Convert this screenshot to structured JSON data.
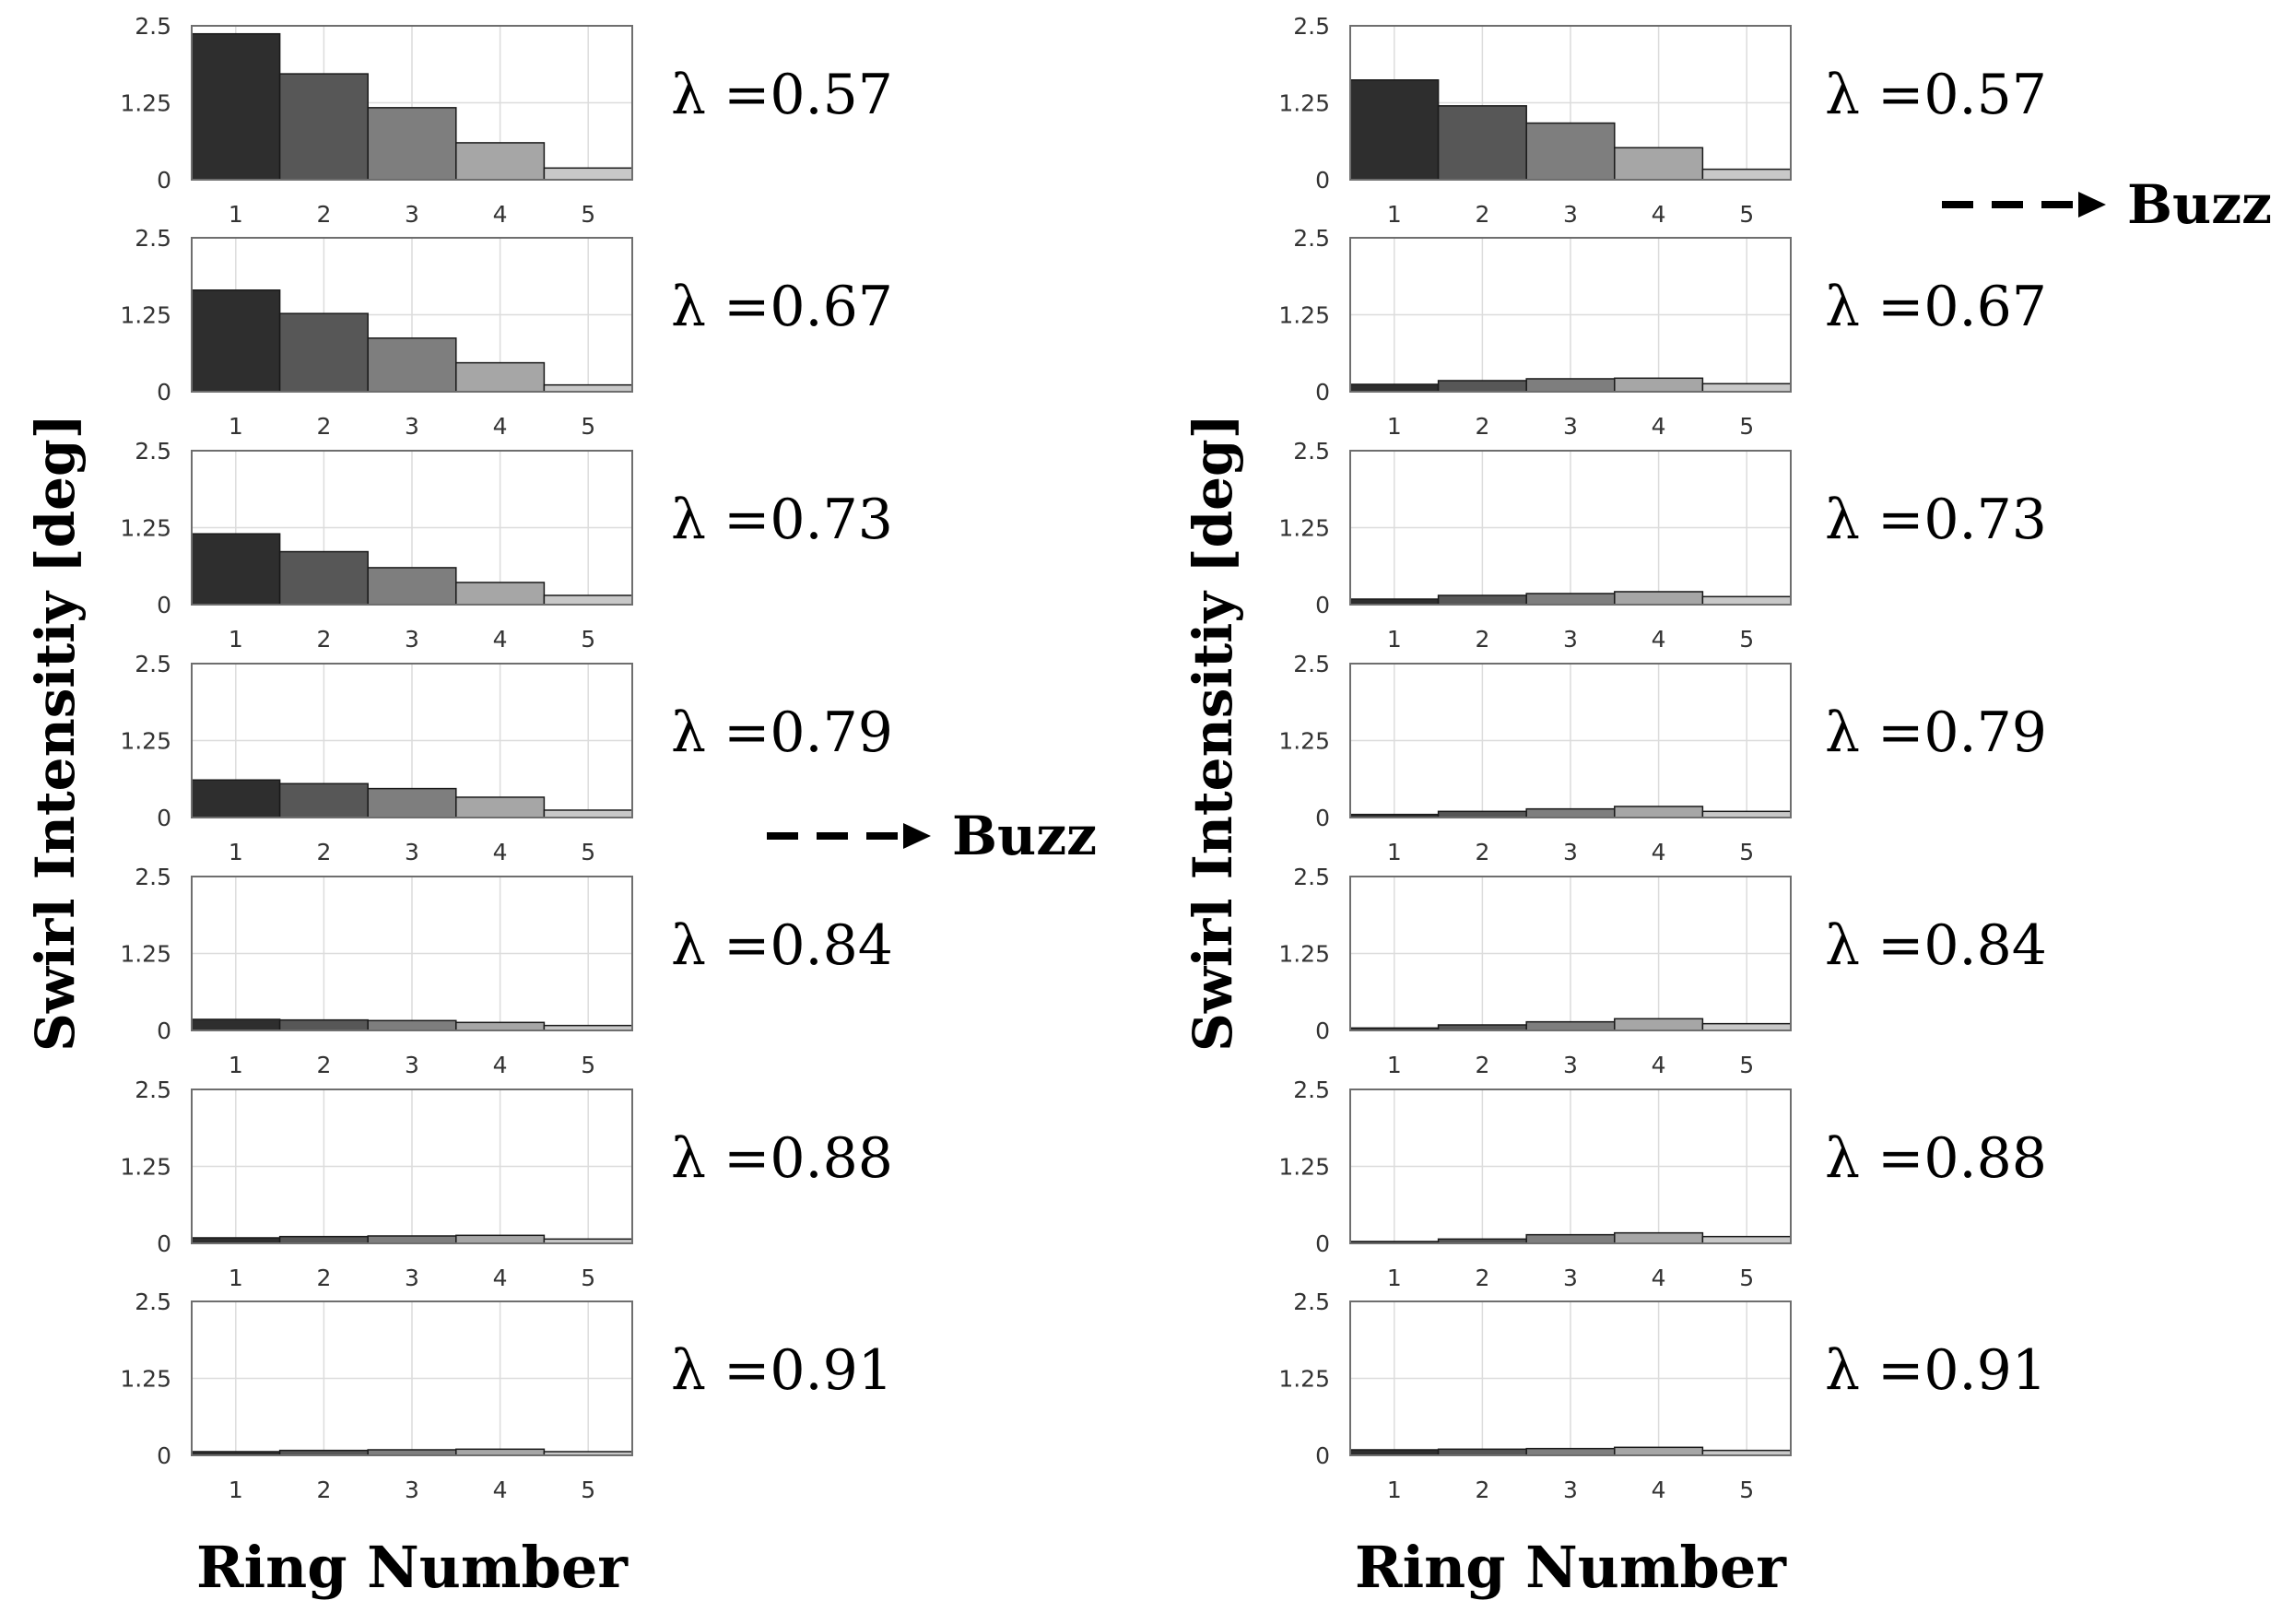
{
  "chart_data": [
    {
      "type": "bar",
      "panel": "left",
      "ylabel": "Swirl Intensitiy [deg]",
      "xlabel": "Ring Number",
      "categories": [
        "1",
        "2",
        "3",
        "4",
        "5"
      ],
      "yticks": [
        "0",
        "1.25",
        "2.5"
      ],
      "ylim": [
        0,
        2.5
      ],
      "bar_colors": [
        "#2e2e2e",
        "#575757",
        "#7e7e7e",
        "#a6a6a6",
        "#c8c8c8"
      ],
      "series": [
        {
          "name": "λ =0.57",
          "values": [
            2.37,
            1.72,
            1.17,
            0.6,
            0.19
          ]
        },
        {
          "name": "λ =0.67",
          "values": [
            1.65,
            1.27,
            0.87,
            0.47,
            0.11
          ]
        },
        {
          "name": "λ =0.73",
          "values": [
            1.15,
            0.86,
            0.6,
            0.36,
            0.15
          ]
        },
        {
          "name": "λ =0.79",
          "values": [
            0.61,
            0.55,
            0.47,
            0.33,
            0.12
          ]
        },
        {
          "name": "λ =0.84",
          "values": [
            0.18,
            0.17,
            0.16,
            0.13,
            0.08
          ]
        },
        {
          "name": "λ =0.88",
          "values": [
            0.09,
            0.11,
            0.12,
            0.13,
            0.07
          ]
        },
        {
          "name": "λ =0.91",
          "values": [
            0.06,
            0.08,
            0.09,
            0.1,
            0.06
          ]
        }
      ],
      "annotation": {
        "text": "Buzz",
        "between_series": [
          "λ =0.79",
          "λ =0.84"
        ]
      }
    },
    {
      "type": "bar",
      "panel": "right",
      "ylabel": "Swirl Intensitiy [deg]",
      "xlabel": "Ring Number",
      "categories": [
        "1",
        "2",
        "3",
        "4",
        "5"
      ],
      "yticks": [
        "0",
        "1.25",
        "2.5"
      ],
      "ylim": [
        0,
        2.5
      ],
      "bar_colors": [
        "#2e2e2e",
        "#575757",
        "#7e7e7e",
        "#a6a6a6",
        "#c8c8c8"
      ],
      "series": [
        {
          "name": "λ =0.57",
          "values": [
            1.62,
            1.2,
            0.92,
            0.52,
            0.17
          ]
        },
        {
          "name": "λ =0.67",
          "values": [
            0.12,
            0.18,
            0.21,
            0.22,
            0.13
          ]
        },
        {
          "name": "λ =0.73",
          "values": [
            0.09,
            0.15,
            0.18,
            0.21,
            0.13
          ]
        },
        {
          "name": "λ =0.79",
          "values": [
            0.05,
            0.1,
            0.14,
            0.18,
            0.1
          ]
        },
        {
          "name": "λ =0.84",
          "values": [
            0.04,
            0.09,
            0.14,
            0.19,
            0.11
          ]
        },
        {
          "name": "λ =0.88",
          "values": [
            0.03,
            0.07,
            0.14,
            0.17,
            0.11
          ]
        },
        {
          "name": "λ =0.91",
          "values": [
            0.09,
            0.1,
            0.11,
            0.13,
            0.08
          ]
        }
      ],
      "annotation": {
        "text": "Buzz",
        "between_series": [
          "λ =0.57",
          "λ =0.67"
        ]
      }
    }
  ]
}
